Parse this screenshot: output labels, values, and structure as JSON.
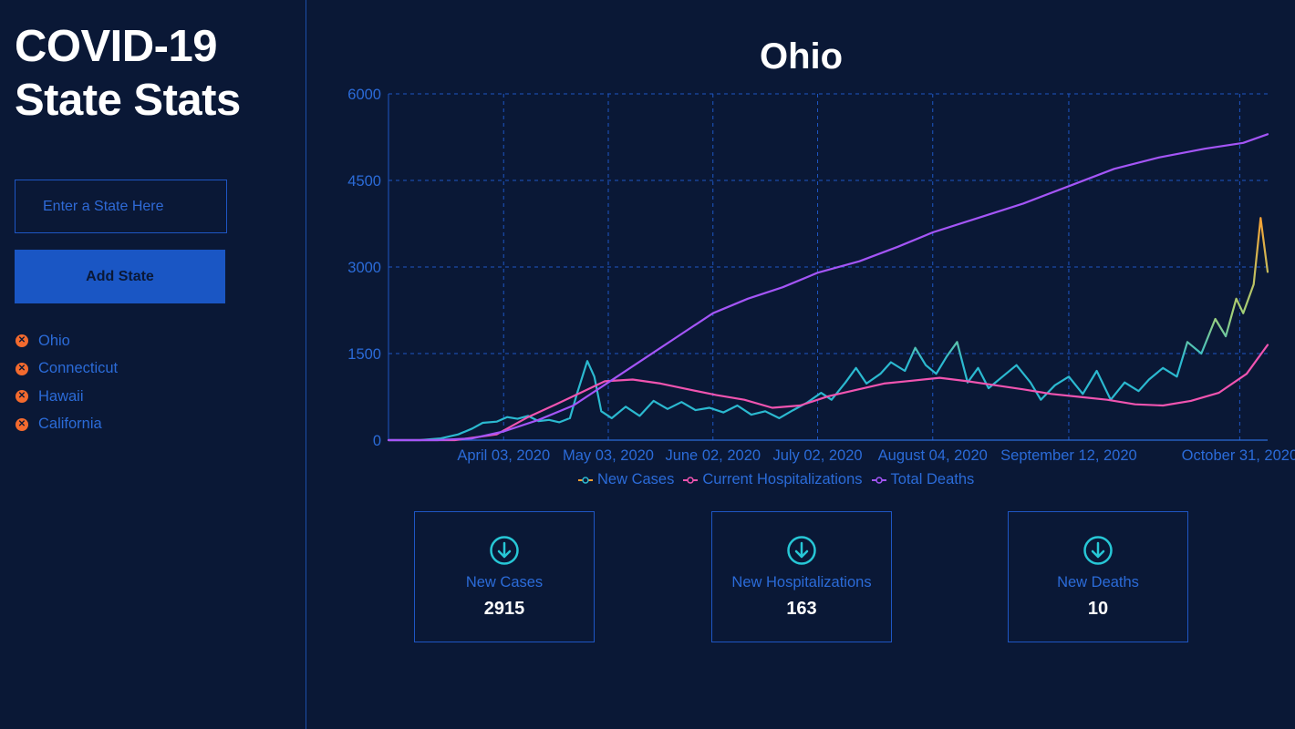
{
  "sidebar": {
    "title_line1": "COVID-19",
    "title_line2": "State Stats",
    "input_placeholder": "Enter a State Here",
    "add_button_label": "Add State",
    "states": [
      {
        "name": "Ohio",
        "remove_icon": "close-circle-icon"
      },
      {
        "name": "Connecticut",
        "remove_icon": "close-circle-icon"
      },
      {
        "name": "Hawaii",
        "remove_icon": "close-circle-icon"
      },
      {
        "name": "California",
        "remove_icon": "close-circle-icon"
      }
    ]
  },
  "main": {
    "chart_title": "Ohio",
    "cards": [
      {
        "label": "New Cases",
        "value": "2915",
        "icon": "arrow-down-circle-icon"
      },
      {
        "label": "New Hospitalizations",
        "value": "163",
        "icon": "arrow-down-circle-icon"
      },
      {
        "label": "New Deaths",
        "value": "10",
        "icon": "arrow-down-circle-icon"
      }
    ]
  },
  "colors": {
    "background": "#0a1836",
    "accent": "#1a56c4",
    "axis_text": "#2b6bd8",
    "new_cases": "#2bb9d0",
    "new_cases_high": "#f8a033",
    "hospitalizations": "#f054b0",
    "deaths": "#a455f7",
    "remove_icon": "#f36a2e",
    "card_icon": "#27c7d6"
  },
  "chart_data": {
    "type": "line",
    "title": "Ohio",
    "x_type": "date",
    "xlim": [
      "2020-03-01",
      "2020-11-08"
    ],
    "ylim": [
      0,
      6000
    ],
    "yticks": [
      0,
      1500,
      3000,
      4500,
      6000
    ],
    "ytick_labels": [
      "0",
      "1500",
      "3000",
      "4500",
      "6000"
    ],
    "xticks": [
      "2020-04-03",
      "2020-05-03",
      "2020-06-02",
      "2020-07-02",
      "2020-08-04",
      "2020-09-12",
      "2020-10-31"
    ],
    "xtick_labels": [
      "April 03, 2020",
      "May 03, 2020",
      "June 02, 2020",
      "July 02, 2020",
      "August 04, 2020",
      "September 12, 2020",
      "October 31, 2020"
    ],
    "grid": true,
    "legend_position": "bottom",
    "series": [
      {
        "name": "New Cases",
        "color": "#2bb9d0",
        "points": [
          [
            "2020-03-01",
            0
          ],
          [
            "2020-03-10",
            0
          ],
          [
            "2020-03-16",
            30
          ],
          [
            "2020-03-21",
            100
          ],
          [
            "2020-03-25",
            200
          ],
          [
            "2020-03-28",
            300
          ],
          [
            "2020-04-01",
            320
          ],
          [
            "2020-04-04",
            400
          ],
          [
            "2020-04-07",
            370
          ],
          [
            "2020-04-10",
            420
          ],
          [
            "2020-04-13",
            330
          ],
          [
            "2020-04-16",
            350
          ],
          [
            "2020-04-19",
            310
          ],
          [
            "2020-04-22",
            380
          ],
          [
            "2020-04-24",
            800
          ],
          [
            "2020-04-27",
            1370
          ],
          [
            "2020-04-29",
            1100
          ],
          [
            "2020-05-01",
            500
          ],
          [
            "2020-05-04",
            380
          ],
          [
            "2020-05-08",
            580
          ],
          [
            "2020-05-12",
            420
          ],
          [
            "2020-05-16",
            680
          ],
          [
            "2020-05-20",
            540
          ],
          [
            "2020-05-24",
            660
          ],
          [
            "2020-05-28",
            520
          ],
          [
            "2020-06-01",
            560
          ],
          [
            "2020-06-05",
            480
          ],
          [
            "2020-06-09",
            600
          ],
          [
            "2020-06-13",
            440
          ],
          [
            "2020-06-17",
            500
          ],
          [
            "2020-06-21",
            380
          ],
          [
            "2020-06-25",
            520
          ],
          [
            "2020-06-29",
            650
          ],
          [
            "2020-07-03",
            820
          ],
          [
            "2020-07-06",
            700
          ],
          [
            "2020-07-10",
            1000
          ],
          [
            "2020-07-13",
            1250
          ],
          [
            "2020-07-16",
            980
          ],
          [
            "2020-07-20",
            1150
          ],
          [
            "2020-07-23",
            1350
          ],
          [
            "2020-07-27",
            1200
          ],
          [
            "2020-07-30",
            1600
          ],
          [
            "2020-08-02",
            1300
          ],
          [
            "2020-08-05",
            1150
          ],
          [
            "2020-08-08",
            1450
          ],
          [
            "2020-08-11",
            1700
          ],
          [
            "2020-08-14",
            1000
          ],
          [
            "2020-08-17",
            1250
          ],
          [
            "2020-08-20",
            900
          ],
          [
            "2020-08-24",
            1100
          ],
          [
            "2020-08-28",
            1300
          ],
          [
            "2020-09-01",
            1000
          ],
          [
            "2020-09-04",
            700
          ],
          [
            "2020-09-08",
            950
          ],
          [
            "2020-09-12",
            1100
          ],
          [
            "2020-09-16",
            800
          ],
          [
            "2020-09-20",
            1200
          ],
          [
            "2020-09-24",
            700
          ],
          [
            "2020-09-28",
            1000
          ],
          [
            "2020-10-02",
            850
          ],
          [
            "2020-10-05",
            1050
          ],
          [
            "2020-10-09",
            1250
          ],
          [
            "2020-10-13",
            1100
          ],
          [
            "2020-10-16",
            1700
          ],
          [
            "2020-10-20",
            1500
          ],
          [
            "2020-10-24",
            2100
          ],
          [
            "2020-10-27",
            1800
          ],
          [
            "2020-10-30",
            2450
          ],
          [
            "2020-11-01",
            2200
          ],
          [
            "2020-11-04",
            2700
          ],
          [
            "2020-11-06",
            3850
          ],
          [
            "2020-11-08",
            2915
          ]
        ]
      },
      {
        "name": "Current Hospitalizations",
        "color": "#f054b0",
        "points": [
          [
            "2020-03-01",
            0
          ],
          [
            "2020-03-20",
            0
          ],
          [
            "2020-04-01",
            100
          ],
          [
            "2020-04-10",
            400
          ],
          [
            "2020-04-18",
            620
          ],
          [
            "2020-04-25",
            820
          ],
          [
            "2020-05-02",
            1020
          ],
          [
            "2020-05-10",
            1050
          ],
          [
            "2020-05-18",
            980
          ],
          [
            "2020-05-26",
            880
          ],
          [
            "2020-06-03",
            780
          ],
          [
            "2020-06-11",
            700
          ],
          [
            "2020-06-19",
            560
          ],
          [
            "2020-06-27",
            600
          ],
          [
            "2020-07-05",
            760
          ],
          [
            "2020-07-13",
            870
          ],
          [
            "2020-07-21",
            980
          ],
          [
            "2020-07-29",
            1030
          ],
          [
            "2020-08-06",
            1080
          ],
          [
            "2020-08-14",
            1020
          ],
          [
            "2020-08-22",
            950
          ],
          [
            "2020-08-30",
            880
          ],
          [
            "2020-09-07",
            800
          ],
          [
            "2020-09-15",
            750
          ],
          [
            "2020-09-23",
            700
          ],
          [
            "2020-10-01",
            620
          ],
          [
            "2020-10-09",
            600
          ],
          [
            "2020-10-17",
            680
          ],
          [
            "2020-10-25",
            820
          ],
          [
            "2020-11-02",
            1150
          ],
          [
            "2020-11-08",
            1650
          ]
        ]
      },
      {
        "name": "Total Deaths",
        "color": "#a455f7",
        "points": [
          [
            "2020-03-01",
            0
          ],
          [
            "2020-03-15",
            0
          ],
          [
            "2020-03-25",
            30
          ],
          [
            "2020-04-03",
            150
          ],
          [
            "2020-04-13",
            350
          ],
          [
            "2020-04-23",
            600
          ],
          [
            "2020-05-03",
            1000
          ],
          [
            "2020-05-13",
            1400
          ],
          [
            "2020-05-23",
            1800
          ],
          [
            "2020-06-02",
            2200
          ],
          [
            "2020-06-12",
            2450
          ],
          [
            "2020-06-22",
            2650
          ],
          [
            "2020-07-02",
            2900
          ],
          [
            "2020-07-14",
            3100
          ],
          [
            "2020-07-25",
            3350
          ],
          [
            "2020-08-04",
            3600
          ],
          [
            "2020-08-17",
            3850
          ],
          [
            "2020-08-30",
            4100
          ],
          [
            "2020-09-12",
            4400
          ],
          [
            "2020-09-25",
            4700
          ],
          [
            "2020-10-08",
            4900
          ],
          [
            "2020-10-21",
            5050
          ],
          [
            "2020-11-01",
            5150
          ],
          [
            "2020-11-08",
            5300
          ]
        ]
      }
    ]
  }
}
